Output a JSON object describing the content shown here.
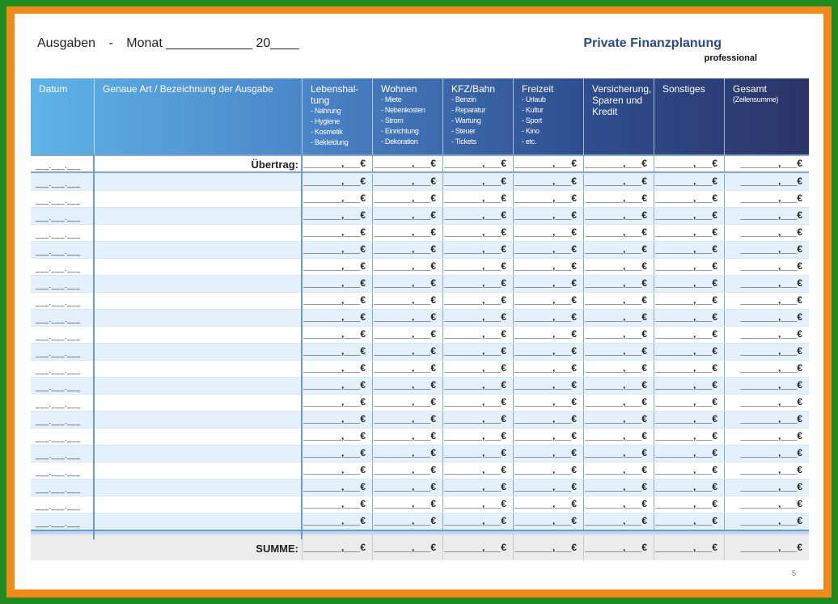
{
  "header": {
    "title": "Ausgaben",
    "dash": "-",
    "month_label": "Monat ____________ 20____",
    "brand": "Private Finanzplanung",
    "brand_sub": "professional"
  },
  "columns": [
    {
      "label": "Datum",
      "sub": []
    },
    {
      "label": "Genaue Art / Bezeichnung  der Ausgabe",
      "sub": []
    },
    {
      "label": "Lebenshal-\ntung",
      "sub": [
        "- Nahrung",
        "- Hygiene",
        "- Kosmetik",
        "- Bekleidung"
      ]
    },
    {
      "label": "Wohnen",
      "sub": [
        "- Miete",
        "- Nebenkosten",
        "- Strom",
        "- Einrichtung",
        "- Dekoration"
      ]
    },
    {
      "label": "KFZ/Bahn",
      "sub": [
        "- Benzin",
        "- Reparatur",
        "- Wartung",
        "- Steuer",
        "- Tickets"
      ]
    },
    {
      "label": "Freizeit",
      "sub": [
        "- Urlaub",
        "- Kultur",
        "- Sport",
        "- Kino",
        "- etc."
      ]
    },
    {
      "label": "Versicherung,\nSparen und\nKredit",
      "sub": []
    },
    {
      "label": "Sonstiges",
      "sub": []
    },
    {
      "label": "Gesamt",
      "sub": [
        "(Zeilensumme)"
      ]
    }
  ],
  "uebertrag_label": "Übertrag:",
  "summe_label": "SUMME:",
  "date_placeholder": "___.___.___",
  "amount_placeholder": "_______,___€",
  "row_count": 21,
  "page_number": "5"
}
